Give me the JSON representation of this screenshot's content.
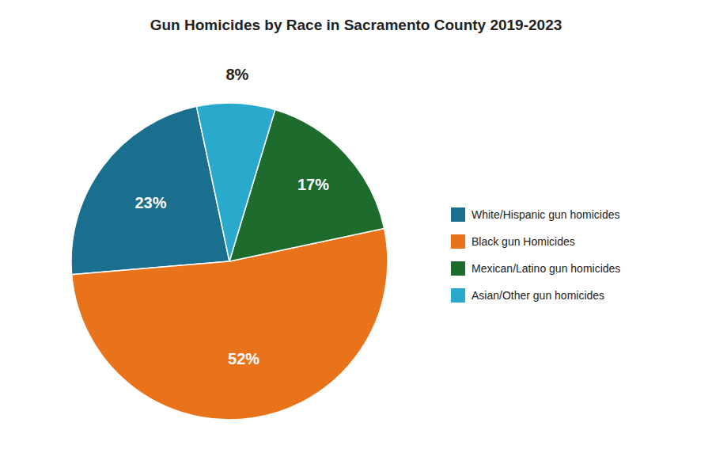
{
  "chart_data": {
    "type": "pie",
    "title": "Gun Homicides by Race in Sacramento County 2019-2023",
    "categories": [
      "White/Hispanic gun homicides",
      "Black gun Homicides",
      "Mexican/Latino gun homicides",
      "Asian/Other gun homicides"
    ],
    "values": [
      23,
      52,
      17,
      8
    ],
    "value_labels": [
      "23%",
      "52%",
      "17%",
      "8%"
    ],
    "colors": [
      "#1a6e8e",
      "#e8731a",
      "#1e6b2e",
      "#29a9cc"
    ],
    "legend": "right",
    "data_labels": true
  }
}
